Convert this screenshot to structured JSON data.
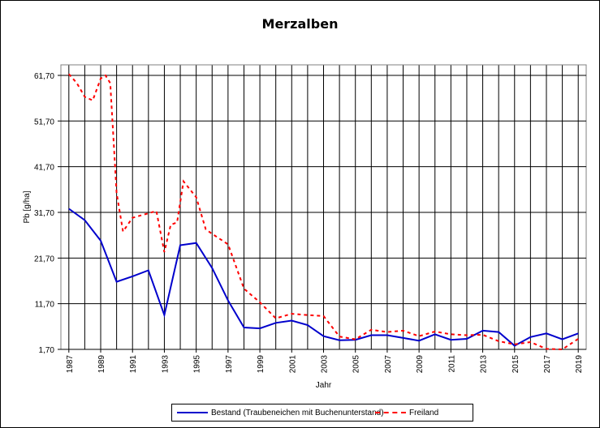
{
  "chart_data": {
    "type": "line",
    "title": "Merzalben",
    "xlabel": "Jahr",
    "ylabel": "Pb [g/ha]",
    "ylim": [
      1.7,
      61.7
    ],
    "yticks": [
      "1,70",
      "11,70",
      "21,70",
      "31,70",
      "41,70",
      "51,70",
      "61,70"
    ],
    "x": [
      1987,
      1988,
      1989,
      1990,
      1991,
      1992,
      1993,
      1994,
      1995,
      1996,
      1997,
      1998,
      1999,
      2000,
      2001,
      2002,
      2003,
      2004,
      2005,
      2006,
      2007,
      2008,
      2009,
      2010,
      2011,
      2012,
      2013,
      2014,
      2015,
      2016,
      2017,
      2018,
      2019
    ],
    "xtick_labels": [
      "1987",
      "1989",
      "1991",
      "1993",
      "1995",
      "1997",
      "1999",
      "2001",
      "2003",
      "2005",
      "2007",
      "2009",
      "2011",
      "2013",
      "2015",
      "2017",
      "2019"
    ],
    "grid": true,
    "legend_position": "bottom",
    "series": [
      {
        "name": "Bestand (Traubeneichen mit Buchenunterstand)",
        "color": "#0000cc",
        "style": "solid",
        "x": [
          1987,
          1988,
          1989,
          1990,
          1991,
          1992,
          1993,
          1994,
          1995,
          1996,
          1997,
          1998,
          1999,
          2000,
          2001,
          2002,
          2003,
          2004,
          2005,
          2006,
          2007,
          2008,
          2009,
          2010,
          2011,
          2012,
          2013,
          2014,
          2015,
          2016,
          2017,
          2018,
          2019
        ],
        "values": [
          32.5,
          30.0,
          25.5,
          16.5,
          17.7,
          19.0,
          9.2,
          24.5,
          25.0,
          19.5,
          12.4,
          6.5,
          6.3,
          7.5,
          8.0,
          7.0,
          4.6,
          3.7,
          3.8,
          4.8,
          4.8,
          4.2,
          3.6,
          5.0,
          3.8,
          4.0,
          5.8,
          5.5,
          2.5,
          4.4,
          5.2,
          3.9,
          5.2
        ]
      },
      {
        "name": "Freiland",
        "color": "#ff0000",
        "style": "dashed",
        "x": [
          1987,
          1987.5,
          1988,
          1988.5,
          1989,
          1989.3,
          1989.6,
          1990,
          1990.4,
          1991,
          1992,
          1992.5,
          1993,
          1993.4,
          1993.8,
          1994.2,
          1995,
          1995.6,
          1996,
          1997,
          1998,
          1999,
          2000,
          2001,
          2002,
          2003,
          2004,
          2005,
          2006,
          2007,
          2008,
          2009,
          2010,
          2011,
          2012,
          2013,
          2014,
          2015,
          2016,
          2017,
          2018,
          2019
        ],
        "values": [
          62.0,
          60.0,
          57.0,
          56.2,
          61.0,
          61.7,
          60.0,
          36.0,
          27.5,
          30.5,
          31.5,
          32.0,
          23.0,
          29.0,
          29.5,
          38.5,
          35.0,
          28.0,
          27.0,
          24.7,
          15.0,
          12.0,
          8.5,
          9.5,
          9.2,
          9.0,
          4.5,
          3.9,
          6.0,
          5.5,
          5.8,
          4.6,
          5.6,
          5.0,
          4.8,
          4.9,
          3.5,
          2.8,
          3.3,
          1.8,
          1.7,
          4.0
        ]
      }
    ]
  }
}
